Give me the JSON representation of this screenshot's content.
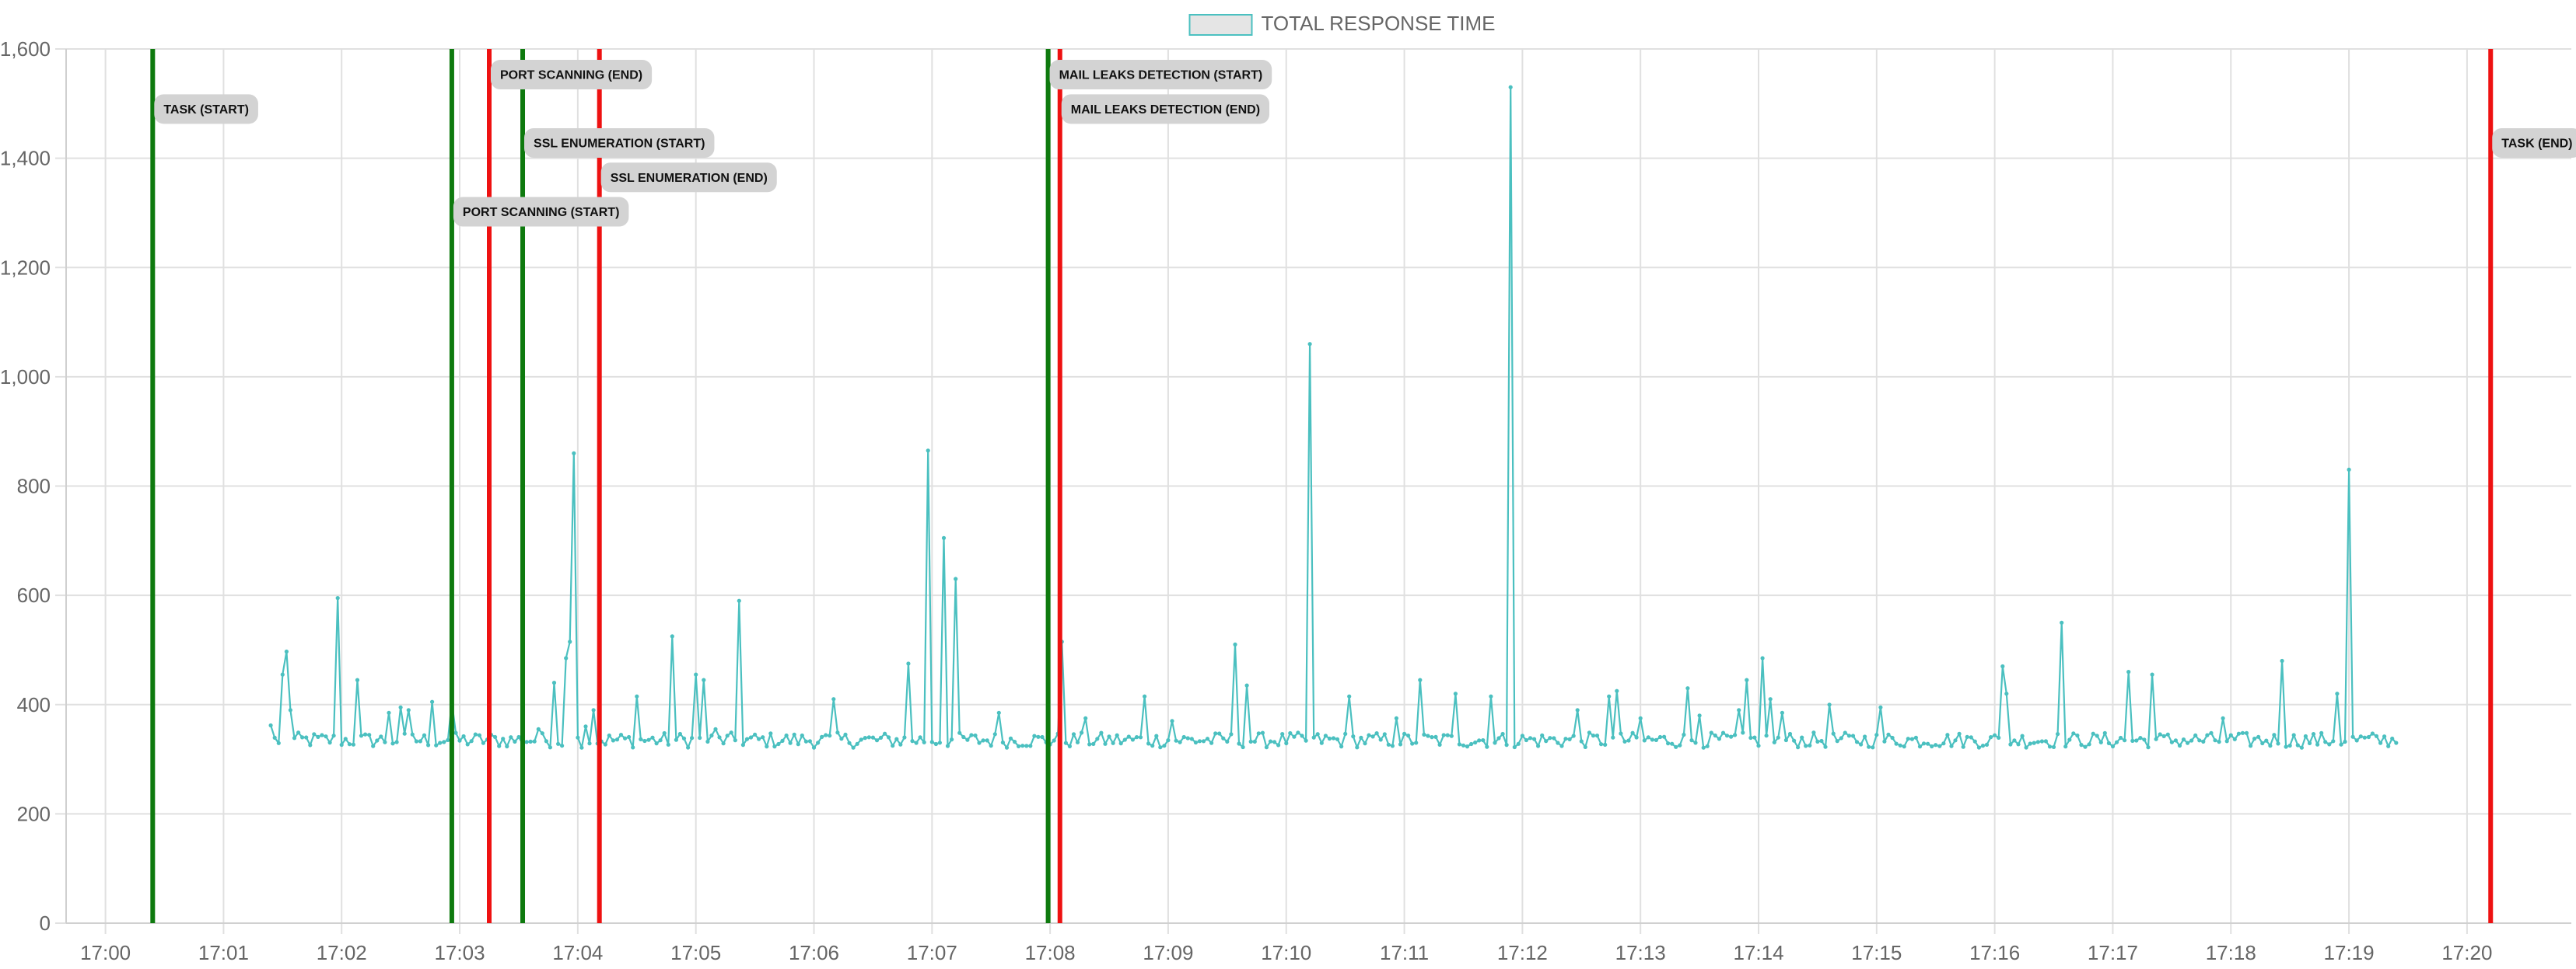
{
  "chart_data": {
    "type": "line",
    "legend": {
      "position": "top-center",
      "entries": [
        {
          "name": "TOTAL RESPONSE TIME",
          "color": "#4bc0c0",
          "fill": "#e5e5e5"
        }
      ]
    },
    "y_axis": {
      "range": [
        0,
        1600
      ],
      "ticks": [
        0,
        200,
        400,
        600,
        800,
        1000,
        1200,
        1400,
        1600
      ],
      "tick_labels": [
        "0",
        "200",
        "400",
        "600",
        "800",
        "1,000",
        "1,200",
        "1,400",
        "1,600"
      ],
      "grid": true
    },
    "x_axis": {
      "range": [
        "16:59:40",
        "17:20:53"
      ],
      "ticks": [
        "17:00",
        "17:01",
        "17:02",
        "17:03",
        "17:04",
        "17:05",
        "17:06",
        "17:07",
        "17:08",
        "17:09",
        "17:10",
        "17:11",
        "17:12",
        "17:13",
        "17:14",
        "17:15",
        "17:16",
        "17:17",
        "17:18",
        "17:19",
        "17:20"
      ],
      "grid": true
    },
    "series": [
      {
        "name": "TOTAL RESPONSE TIME",
        "color": "#4bc0c0",
        "baseline": 335,
        "x_start": "17:01:24",
        "x_end": "17:19:24",
        "sample_interval_seconds": 2,
        "peaks": [
          {
            "x": "17:01:24",
            "y": 362
          },
          {
            "x": "17:01:30",
            "y": 455
          },
          {
            "x": "17:01:32",
            "y": 497
          },
          {
            "x": "17:01:34",
            "y": 390
          },
          {
            "x": "17:01:58",
            "y": 595
          },
          {
            "x": "17:02:08",
            "y": 445
          },
          {
            "x": "17:02:24",
            "y": 385
          },
          {
            "x": "17:02:30",
            "y": 395
          },
          {
            "x": "17:02:34",
            "y": 390
          },
          {
            "x": "17:02:46",
            "y": 405
          },
          {
            "x": "17:02:56",
            "y": 405
          },
          {
            "x": "17:03:40",
            "y": 355
          },
          {
            "x": "17:03:48",
            "y": 440
          },
          {
            "x": "17:03:54",
            "y": 485
          },
          {
            "x": "17:03:56",
            "y": 515
          },
          {
            "x": "17:03:58",
            "y": 860
          },
          {
            "x": "17:04:04",
            "y": 360
          },
          {
            "x": "17:04:08",
            "y": 390
          },
          {
            "x": "17:04:30",
            "y": 415
          },
          {
            "x": "17:04:48",
            "y": 525
          },
          {
            "x": "17:05:00",
            "y": 455
          },
          {
            "x": "17:05:04",
            "y": 445
          },
          {
            "x": "17:05:10",
            "y": 355
          },
          {
            "x": "17:05:22",
            "y": 590
          },
          {
            "x": "17:06:10",
            "y": 410
          },
          {
            "x": "17:06:48",
            "y": 475
          },
          {
            "x": "17:06:58",
            "y": 865
          },
          {
            "x": "17:07:06",
            "y": 705
          },
          {
            "x": "17:07:12",
            "y": 630
          },
          {
            "x": "17:07:34",
            "y": 385
          },
          {
            "x": "17:08:06",
            "y": 515
          },
          {
            "x": "17:08:18",
            "y": 375
          },
          {
            "x": "17:08:48",
            "y": 415
          },
          {
            "x": "17:09:02",
            "y": 370
          },
          {
            "x": "17:09:34",
            "y": 510
          },
          {
            "x": "17:09:40",
            "y": 435
          },
          {
            "x": "17:10:12",
            "y": 1060
          },
          {
            "x": "17:10:32",
            "y": 415
          },
          {
            "x": "17:10:56",
            "y": 375
          },
          {
            "x": "17:11:08",
            "y": 445
          },
          {
            "x": "17:11:26",
            "y": 420
          },
          {
            "x": "17:11:44",
            "y": 415
          },
          {
            "x": "17:11:54",
            "y": 1530
          },
          {
            "x": "17:12:28",
            "y": 390
          },
          {
            "x": "17:12:44",
            "y": 415
          },
          {
            "x": "17:12:48",
            "y": 425
          },
          {
            "x": "17:13:00",
            "y": 375
          },
          {
            "x": "17:13:24",
            "y": 430
          },
          {
            "x": "17:13:30",
            "y": 380
          },
          {
            "x": "17:13:50",
            "y": 390
          },
          {
            "x": "17:13:54",
            "y": 445
          },
          {
            "x": "17:14:02",
            "y": 485
          },
          {
            "x": "17:14:06",
            "y": 410
          },
          {
            "x": "17:14:12",
            "y": 385
          },
          {
            "x": "17:14:36",
            "y": 400
          },
          {
            "x": "17:15:02",
            "y": 395
          },
          {
            "x": "17:16:04",
            "y": 470
          },
          {
            "x": "17:16:06",
            "y": 420
          },
          {
            "x": "17:16:34",
            "y": 550
          },
          {
            "x": "17:17:08",
            "y": 460
          },
          {
            "x": "17:17:20",
            "y": 455
          },
          {
            "x": "17:17:56",
            "y": 375
          },
          {
            "x": "17:18:26",
            "y": 480
          },
          {
            "x": "17:18:54",
            "y": 420
          },
          {
            "x": "17:19:00",
            "y": 830
          },
          {
            "x": "17:19:24",
            "y": 330
          }
        ]
      }
    ],
    "markers": [
      {
        "label": "TASK (START)",
        "x": "17:00:24",
        "kind": "start",
        "label_y": 1490
      },
      {
        "label": "PORT SCANNING (START)",
        "x": "17:02:56",
        "kind": "start",
        "label_y": 1302
      },
      {
        "label": "PORT SCANNING (END)",
        "x": "17:03:15",
        "kind": "end",
        "label_y": 1553
      },
      {
        "label": "SSL ENUMERATION (START)",
        "x": "17:03:32",
        "kind": "start",
        "label_y": 1428
      },
      {
        "label": "SSL ENUMERATION (END)",
        "x": "17:04:11",
        "kind": "end",
        "label_y": 1365
      },
      {
        "label": "MAIL LEAKS DETECTION (START)",
        "x": "17:07:59",
        "kind": "start",
        "label_y": 1553
      },
      {
        "label": "MAIL LEAKS DETECTION (END)",
        "x": "17:08:05",
        "kind": "end",
        "label_y": 1490
      },
      {
        "label": "TASK (END)",
        "x": "17:20:12",
        "kind": "end",
        "label_y": 1428
      }
    ],
    "marker_colors": {
      "start": "#0e7a0e",
      "end": "#ee1111"
    }
  }
}
